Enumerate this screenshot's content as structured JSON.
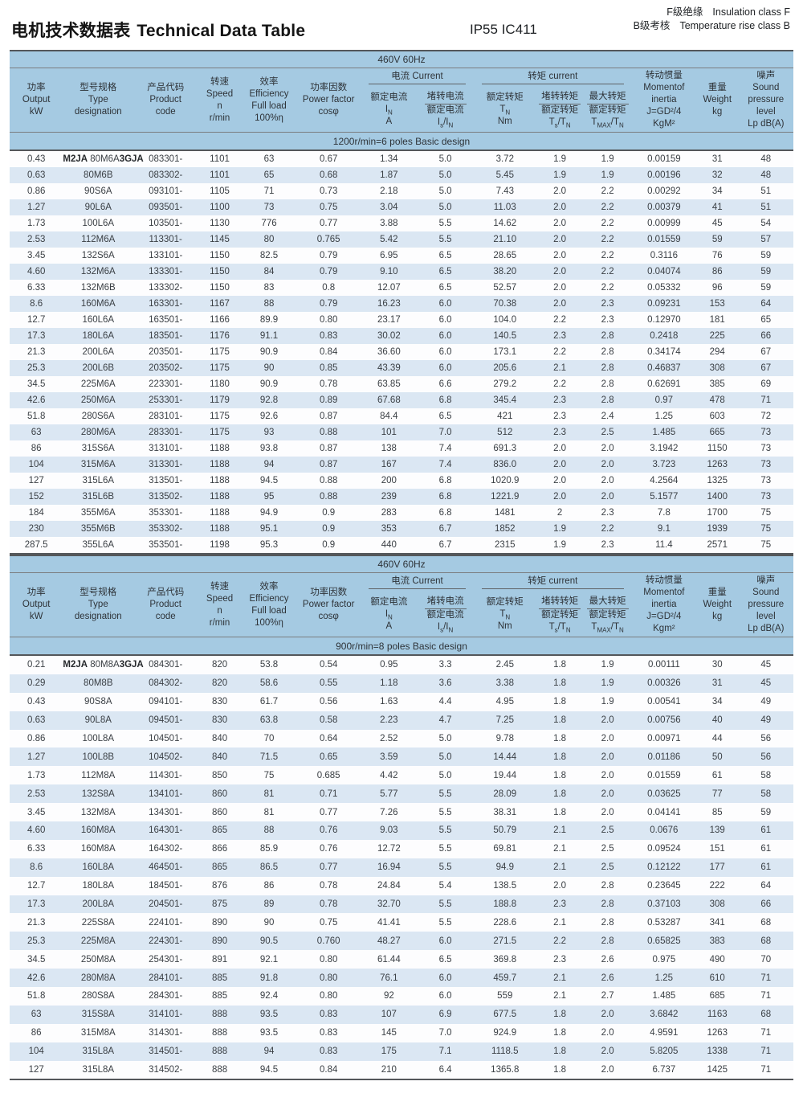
{
  "page": {
    "title_zh": "电机技术数据表",
    "title_en": "Technical Data Table",
    "protection": "IP55 IC411",
    "insulation_zh": "F级绝缘",
    "insulation_en": "Insulation class F",
    "temp_rise_zh": "B级考核",
    "temp_rise_en": "Temperature rise class B"
  },
  "colors": {
    "band_blue": "#a5cae2",
    "stripe_blue": "#dbe7f3",
    "rule_dark": "#54575a",
    "text": "#3a3f44"
  },
  "table_header": {
    "simple_cols": [
      {
        "name": "output",
        "lines": [
          "功率",
          "Output",
          "kW"
        ]
      },
      {
        "name": "type",
        "lines": [
          "型号规格",
          "Type",
          "designation"
        ]
      },
      {
        "name": "product-code",
        "lines": [
          "产品代码",
          "Product",
          "code"
        ]
      },
      {
        "name": "speed",
        "lines": [
          "转速",
          "Speed",
          "n",
          "r/min"
        ]
      },
      {
        "name": "efficiency",
        "lines": [
          "效率",
          "Efficiency",
          "Full load",
          "100%η"
        ]
      },
      {
        "name": "power-factor",
        "lines": [
          "功率因数",
          "Power factor",
          "cosφ"
        ]
      }
    ],
    "current_group": {
      "title": "电流  Current",
      "sub": [
        {
          "lines": [
            "额定电流",
            "I~N~",
            "A"
          ],
          "frac": false
        },
        {
          "lines": [
            "堵转电流",
            "额定电流",
            "I~s~/I~N~"
          ],
          "frac": true
        }
      ]
    },
    "torque_group": {
      "title": "转矩  current",
      "sub": [
        {
          "lines": [
            "额定转矩",
            "T~N~",
            "Nm"
          ],
          "frac": false
        },
        {
          "lines": [
            "堵转转矩",
            "额定转矩",
            "T~s~/T~N~"
          ],
          "frac": true
        },
        {
          "lines": [
            "最大转矩",
            "额定转矩",
            "T~MAX~/T~N~"
          ],
          "frac": true
        }
      ]
    },
    "tail_cols": [
      {
        "name": "inertia",
        "lines": [
          "转动惯量",
          "Momentof",
          "inertia",
          "J=GD²/4",
          "{unit}"
        ]
      },
      {
        "name": "weight",
        "lines": [
          "重量",
          "Weight",
          "kg"
        ]
      },
      {
        "name": "noise",
        "lines": [
          "噪声",
          "Sound",
          "pressure level",
          "Lp dB(A)"
        ]
      }
    ]
  },
  "tables": [
    {
      "voltage_band": "460V 60Hz",
      "design_band": "1200r/min=6 poles Basic design",
      "inertia_unit": "KgM²",
      "rows": [
        [
          "0.43",
          {
            "pre": "M2JA",
            "mid": "80M6A",
            "suf": "3GJA"
          },
          "083301-",
          "1101",
          "63",
          "0.67",
          "1.34",
          "5.0",
          "3.72",
          "1.9",
          "1.9",
          "0.00159",
          "31",
          "48"
        ],
        [
          "0.63",
          "80M6B",
          "083302-",
          "1101",
          "65",
          "0.68",
          "1.87",
          "5.0",
          "5.45",
          "1.9",
          "1.9",
          "0.00196",
          "32",
          "48"
        ],
        [
          "0.86",
          "90S6A",
          "093101-",
          "1105",
          "71",
          "0.73",
          "2.18",
          "5.0",
          "7.43",
          "2.0",
          "2.2",
          "0.00292",
          "34",
          "51"
        ],
        [
          "1.27",
          "90L6A",
          "093501-",
          "1100",
          "73",
          "0.75",
          "3.04",
          "5.0",
          "11.03",
          "2.0",
          "2.2",
          "0.00379",
          "41",
          "51"
        ],
        [
          "1.73",
          "100L6A",
          "103501-",
          "1130",
          "776",
          "0.77",
          "3.88",
          "5.5",
          "14.62",
          "2.0",
          "2.2",
          "0.00999",
          "45",
          "54"
        ],
        [
          "2.53",
          "112M6A",
          "113301-",
          "1145",
          "80",
          "0.765",
          "5.42",
          "5.5",
          "21.10",
          "2.0",
          "2.2",
          "0.01559",
          "59",
          "57"
        ],
        [
          "3.45",
          "132S6A",
          "133101-",
          "1150",
          "82.5",
          "0.79",
          "6.95",
          "6.5",
          "28.65",
          "2.0",
          "2.2",
          "0.3116",
          "76",
          "59"
        ],
        [
          "4.60",
          "132M6A",
          "133301-",
          "1150",
          "84",
          "0.79",
          "9.10",
          "6.5",
          "38.20",
          "2.0",
          "2.2",
          "0.04074",
          "86",
          "59"
        ],
        [
          "6.33",
          "132M6B",
          "133302-",
          "1150",
          "83",
          "0.8",
          "12.07",
          "6.5",
          "52.57",
          "2.0",
          "2.2",
          "0.05332",
          "96",
          "59"
        ],
        [
          "8.6",
          "160M6A",
          "163301-",
          "1167",
          "88",
          "0.79",
          "16.23",
          "6.0",
          "70.38",
          "2.0",
          "2.3",
          "0.09231",
          "153",
          "64"
        ],
        [
          "12.7",
          "160L6A",
          "163501-",
          "1166",
          "89.9",
          "0.80",
          "23.17",
          "6.0",
          "104.0",
          "2.2",
          "2.3",
          "0.12970",
          "181",
          "65"
        ],
        [
          "17.3",
          "180L6A",
          "183501-",
          "1176",
          "91.1",
          "0.83",
          "30.02",
          "6.0",
          "140.5",
          "2.3",
          "2.8",
          "0.2418",
          "225",
          "66"
        ],
        [
          "21.3",
          "200L6A",
          "203501-",
          "1175",
          "90.9",
          "0.84",
          "36.60",
          "6.0",
          "173.1",
          "2.2",
          "2.8",
          "0.34174",
          "294",
          "67"
        ],
        [
          "25.3",
          "200L6B",
          "203502-",
          "1175",
          "90",
          "0.85",
          "43.39",
          "6.0",
          "205.6",
          "2.1",
          "2.8",
          "0.46837",
          "308",
          "67"
        ],
        [
          "34.5",
          "225M6A",
          "223301-",
          "1180",
          "90.9",
          "0.78",
          "63.85",
          "6.6",
          "279.2",
          "2.2",
          "2.8",
          "0.62691",
          "385",
          "69"
        ],
        [
          "42.6",
          "250M6A",
          "253301-",
          "1179",
          "92.8",
          "0.89",
          "67.68",
          "6.8",
          "345.4",
          "2.3",
          "2.8",
          "0.97",
          "478",
          "71"
        ],
        [
          "51.8",
          "280S6A",
          "283101-",
          "1175",
          "92.6",
          "0.87",
          "84.4",
          "6.5",
          "421",
          "2.3",
          "2.4",
          "1.25",
          "603",
          "72"
        ],
        [
          "63",
          "280M6A",
          "283301-",
          "1175",
          "93",
          "0.88",
          "101",
          "7.0",
          "512",
          "2.3",
          "2.5",
          "1.485",
          "665",
          "73"
        ],
        [
          "86",
          "315S6A",
          "313101-",
          "1188",
          "93.8",
          "0.87",
          "138",
          "7.4",
          "691.3",
          "2.0",
          "2.0",
          "3.1942",
          "1150",
          "73"
        ],
        [
          "104",
          "315M6A",
          "313301-",
          "1188",
          "94",
          "0.87",
          "167",
          "7.4",
          "836.0",
          "2.0",
          "2.0",
          "3.723",
          "1263",
          "73"
        ],
        [
          "127",
          "315L6A",
          "313501-",
          "1188",
          "94.5",
          "0.88",
          "200",
          "6.8",
          "1020.9",
          "2.0",
          "2.0",
          "4.2564",
          "1325",
          "73"
        ],
        [
          "152",
          "315L6B",
          "313502-",
          "1188",
          "95",
          "0.88",
          "239",
          "6.8",
          "1221.9",
          "2.0",
          "2.0",
          "5.1577",
          "1400",
          "73"
        ],
        [
          "184",
          "355M6A",
          "353301-",
          "1188",
          "94.9",
          "0.9",
          "283",
          "6.8",
          "1481",
          "2",
          "2.3",
          "7.8",
          "1700",
          "75"
        ],
        [
          "230",
          "355M6B",
          "353302-",
          "1188",
          "95.1",
          "0.9",
          "353",
          "6.7",
          "1852",
          "1.9",
          "2.2",
          "9.1",
          "1939",
          "75"
        ],
        [
          "287.5",
          "355L6A",
          "353501-",
          "1198",
          "95.3",
          "0.9",
          "440",
          "6.7",
          "2315",
          "1.9",
          "2.3",
          "11.4",
          "2571",
          "75"
        ]
      ]
    },
    {
      "voltage_band": "460V 60Hz",
      "design_band": "900r/min=8 poles Basic design",
      "inertia_unit": "Kgm²",
      "rows": [
        [
          "0.21",
          {
            "pre": "M2JA",
            "mid": "80M8A",
            "suf": "3GJA"
          },
          "084301-",
          "820",
          "53.8",
          "0.54",
          "0.95",
          "3.3",
          "2.45",
          "1.8",
          "1.9",
          "0.00111",
          "30",
          "45"
        ],
        [
          "0.29",
          "80M8B",
          "084302-",
          "820",
          "58.6",
          "0.55",
          "1.18",
          "3.6",
          "3.38",
          "1.8",
          "1.9",
          "0.00326",
          "31",
          "45"
        ],
        [
          "0.43",
          "90S8A",
          "094101-",
          "830",
          "61.7",
          "0.56",
          "1.63",
          "4.4",
          "4.95",
          "1.8",
          "1.9",
          "0.00541",
          "34",
          "49"
        ],
        [
          "0.63",
          "90L8A",
          "094501-",
          "830",
          "63.8",
          "0.58",
          "2.23",
          "4.7",
          "7.25",
          "1.8",
          "2.0",
          "0.00756",
          "40",
          "49"
        ],
        [
          "0.86",
          "100L8A",
          "104501-",
          "840",
          "70",
          "0.64",
          "2.52",
          "5.0",
          "9.78",
          "1.8",
          "2.0",
          "0.00971",
          "44",
          "56"
        ],
        [
          "1.27",
          "100L8B",
          "104502-",
          "840",
          "71.5",
          "0.65",
          "3.59",
          "5.0",
          "14.44",
          "1.8",
          "2.0",
          "0.01186",
          "50",
          "56"
        ],
        [
          "1.73",
          "112M8A",
          "114301-",
          "850",
          "75",
          "0.685",
          "4.42",
          "5.0",
          "19.44",
          "1.8",
          "2.0",
          "0.01559",
          "61",
          "58"
        ],
        [
          "2.53",
          "132S8A",
          "134101-",
          "860",
          "81",
          "0.71",
          "5.77",
          "5.5",
          "28.09",
          "1.8",
          "2.0",
          "0.03625",
          "77",
          "58"
        ],
        [
          "3.45",
          "132M8A",
          "134301-",
          "860",
          "81",
          "0.77",
          "7.26",
          "5.5",
          "38.31",
          "1.8",
          "2.0",
          "0.04141",
          "85",
          "59"
        ],
        [
          "4.60",
          "160M8A",
          "164301-",
          "865",
          "88",
          "0.76",
          "9.03",
          "5.5",
          "50.79",
          "2.1",
          "2.5",
          "0.0676",
          "139",
          "61"
        ],
        [
          "6.33",
          "160M8A",
          "164302-",
          "866",
          "85.9",
          "0.76",
          "12.72",
          "5.5",
          "69.81",
          "2.1",
          "2.5",
          "0.09524",
          "151",
          "61"
        ],
        [
          "8.6",
          "160L8A",
          "464501-",
          "865",
          "86.5",
          "0.77",
          "16.94",
          "5.5",
          "94.9",
          "2.1",
          "2.5",
          "0.12122",
          "177",
          "61"
        ],
        [
          "12.7",
          "180L8A",
          "184501-",
          "876",
          "86",
          "0.78",
          "24.84",
          "5.4",
          "138.5",
          "2.0",
          "2.8",
          "0.23645",
          "222",
          "64"
        ],
        [
          "17.3",
          "200L8A",
          "204501-",
          "875",
          "89",
          "0.78",
          "32.70",
          "5.5",
          "188.8",
          "2.3",
          "2.8",
          "0.37103",
          "308",
          "66"
        ],
        [
          "21.3",
          "225S8A",
          "224101-",
          "890",
          "90",
          "0.75",
          "41.41",
          "5.5",
          "228.6",
          "2.1",
          "2.8",
          "0.53287",
          "341",
          "68"
        ],
        [
          "25.3",
          "225M8A",
          "224301-",
          "890",
          "90.5",
          "0.760",
          "48.27",
          "6.0",
          "271.5",
          "2.2",
          "2.8",
          "0.65825",
          "383",
          "68"
        ],
        [
          "34.5",
          "250M8A",
          "254301-",
          "891",
          "92.1",
          "0.80",
          "61.44",
          "6.5",
          "369.8",
          "2.3",
          "2.6",
          "0.975",
          "490",
          "70"
        ],
        [
          "42.6",
          "280M8A",
          "284101-",
          "885",
          "91.8",
          "0.80",
          "76.1",
          "6.0",
          "459.7",
          "2.1",
          "2.6",
          "1.25",
          "610",
          "71"
        ],
        [
          "51.8",
          "280S8A",
          "284301-",
          "885",
          "92.4",
          "0.80",
          "92",
          "6.0",
          "559",
          "2.1",
          "2.7",
          "1.485",
          "685",
          "71"
        ],
        [
          "63",
          "315S8A",
          "314101-",
          "888",
          "93.5",
          "0.83",
          "107",
          "6.9",
          "677.5",
          "1.8",
          "2.0",
          "3.6842",
          "1163",
          "68"
        ],
        [
          "86",
          "315M8A",
          "314301-",
          "888",
          "93.5",
          "0.83",
          "145",
          "7.0",
          "924.9",
          "1.8",
          "2.0",
          "4.9591",
          "1263",
          "71"
        ],
        [
          "104",
          "315L8A",
          "314501-",
          "888",
          "94",
          "0.83",
          "175",
          "7.1",
          "1118.5",
          "1.8",
          "2.0",
          "5.8205",
          "1338",
          "71"
        ],
        [
          "127",
          "315L8A",
          "314502-",
          "888",
          "94.5",
          "0.84",
          "210",
          "6.4",
          "1365.8",
          "1.8",
          "2.0",
          "6.737",
          "1425",
          "71"
        ]
      ]
    }
  ]
}
